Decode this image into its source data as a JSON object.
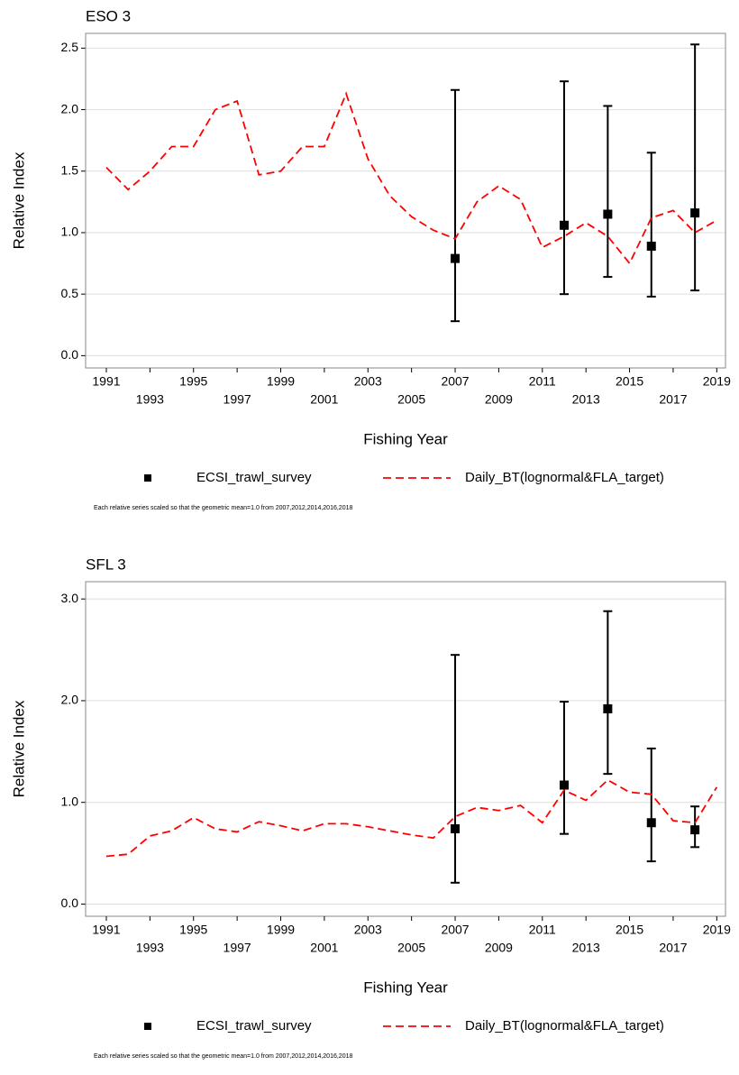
{
  "chart_data": [
    {
      "type": "line",
      "title": "ESO 3",
      "xlabel": "Fishing Year",
      "ylabel": "Relative Index",
      "note": "Each relative series scaled so that the geometric mean=1.0 from 2007,2012,2014,2016,2018",
      "x": [
        1991,
        1992,
        1993,
        1994,
        1995,
        1996,
        1997,
        1998,
        1999,
        2000,
        2001,
        2002,
        2003,
        2004,
        2005,
        2006,
        2007,
        2008,
        2009,
        2010,
        2011,
        2012,
        2013,
        2014,
        2015,
        2016,
        2017,
        2018,
        2019
      ],
      "xlim": [
        1990.05,
        2019.4
      ],
      "xticks": [
        1991,
        1993,
        1995,
        1997,
        1999,
        2001,
        2003,
        2005,
        2007,
        2009,
        2011,
        2013,
        2015,
        2017,
        2019
      ],
      "ylim": [
        -0.1,
        2.62
      ],
      "yticks": [
        {
          "value": 0,
          "label": "0.0"
        },
        0.5,
        {
          "value": 1,
          "label": "1.0"
        },
        1.5,
        {
          "value": 2,
          "label": "2.0"
        },
        2.5
      ],
      "grid": true,
      "series": [
        {
          "name": "ECSI_trawl_survey",
          "color": "#000000",
          "x": [
            2007,
            2012,
            2014,
            2016,
            2018
          ],
          "values": [
            0.79,
            1.06,
            1.15,
            0.89,
            1.16
          ],
          "lower": [
            0.28,
            0.5,
            0.64,
            0.48,
            0.53
          ],
          "upper": [
            2.16,
            2.23,
            2.03,
            1.65,
            2.53
          ]
        },
        {
          "name": "Daily_BT(lognormal&FLA_target)",
          "color": "#ff0000",
          "values": [
            1.53,
            1.35,
            1.5,
            1.7,
            1.7,
            2.0,
            2.07,
            1.47,
            1.5,
            1.7,
            1.7,
            2.13,
            1.6,
            1.3,
            1.13,
            1.02,
            0.95,
            1.25,
            1.38,
            1.27,
            0.88,
            0.97,
            1.08,
            0.97,
            0.75,
            1.12,
            1.18,
            1.0,
            1.1
          ]
        }
      ]
    },
    {
      "type": "line",
      "title": "SFL 3",
      "xlabel": "Fishing Year",
      "ylabel": "Relative Index",
      "note": "Each relative series scaled so that the geometric mean=1.0 from 2007,2012,2014,2016,2018",
      "x": [
        1991,
        1992,
        1993,
        1994,
        1995,
        1996,
        1997,
        1998,
        1999,
        2000,
        2001,
        2002,
        2003,
        2004,
        2005,
        2006,
        2007,
        2008,
        2009,
        2010,
        2011,
        2012,
        2013,
        2014,
        2015,
        2016,
        2017,
        2018,
        2019
      ],
      "xlim": [
        1990.05,
        2019.4
      ],
      "xticks": [
        1991,
        1993,
        1995,
        1997,
        1999,
        2001,
        2003,
        2005,
        2007,
        2009,
        2011,
        2013,
        2015,
        2017,
        2019
      ],
      "ylim": [
        -0.12,
        3.17
      ],
      "yticks": [
        {
          "value": 0,
          "label": "0.0"
        },
        {
          "value": 1,
          "label": "1.0"
        },
        {
          "value": 2,
          "label": "2.0"
        },
        {
          "value": 3,
          "label": "3.0"
        }
      ],
      "grid": true,
      "series": [
        {
          "name": "ECSI_trawl_survey",
          "color": "#000000",
          "x": [
            2007,
            2012,
            2014,
            2016,
            2018
          ],
          "values": [
            0.74,
            1.17,
            1.92,
            0.8,
            0.73
          ],
          "lower": [
            0.21,
            0.69,
            1.28,
            0.42,
            0.56
          ],
          "upper": [
            2.45,
            1.99,
            2.88,
            1.53,
            0.96
          ]
        },
        {
          "name": "Daily_BT(lognormal&FLA_target)",
          "color": "#ff0000",
          "values": [
            0.47,
            0.49,
            0.67,
            0.72,
            0.85,
            0.74,
            0.71,
            0.81,
            0.77,
            0.72,
            0.79,
            0.79,
            0.76,
            0.72,
            0.68,
            0.65,
            0.86,
            0.95,
            0.92,
            0.97,
            0.8,
            1.12,
            1.02,
            1.22,
            1.1,
            1.08,
            0.82,
            0.8,
            1.15
          ]
        }
      ]
    }
  ]
}
